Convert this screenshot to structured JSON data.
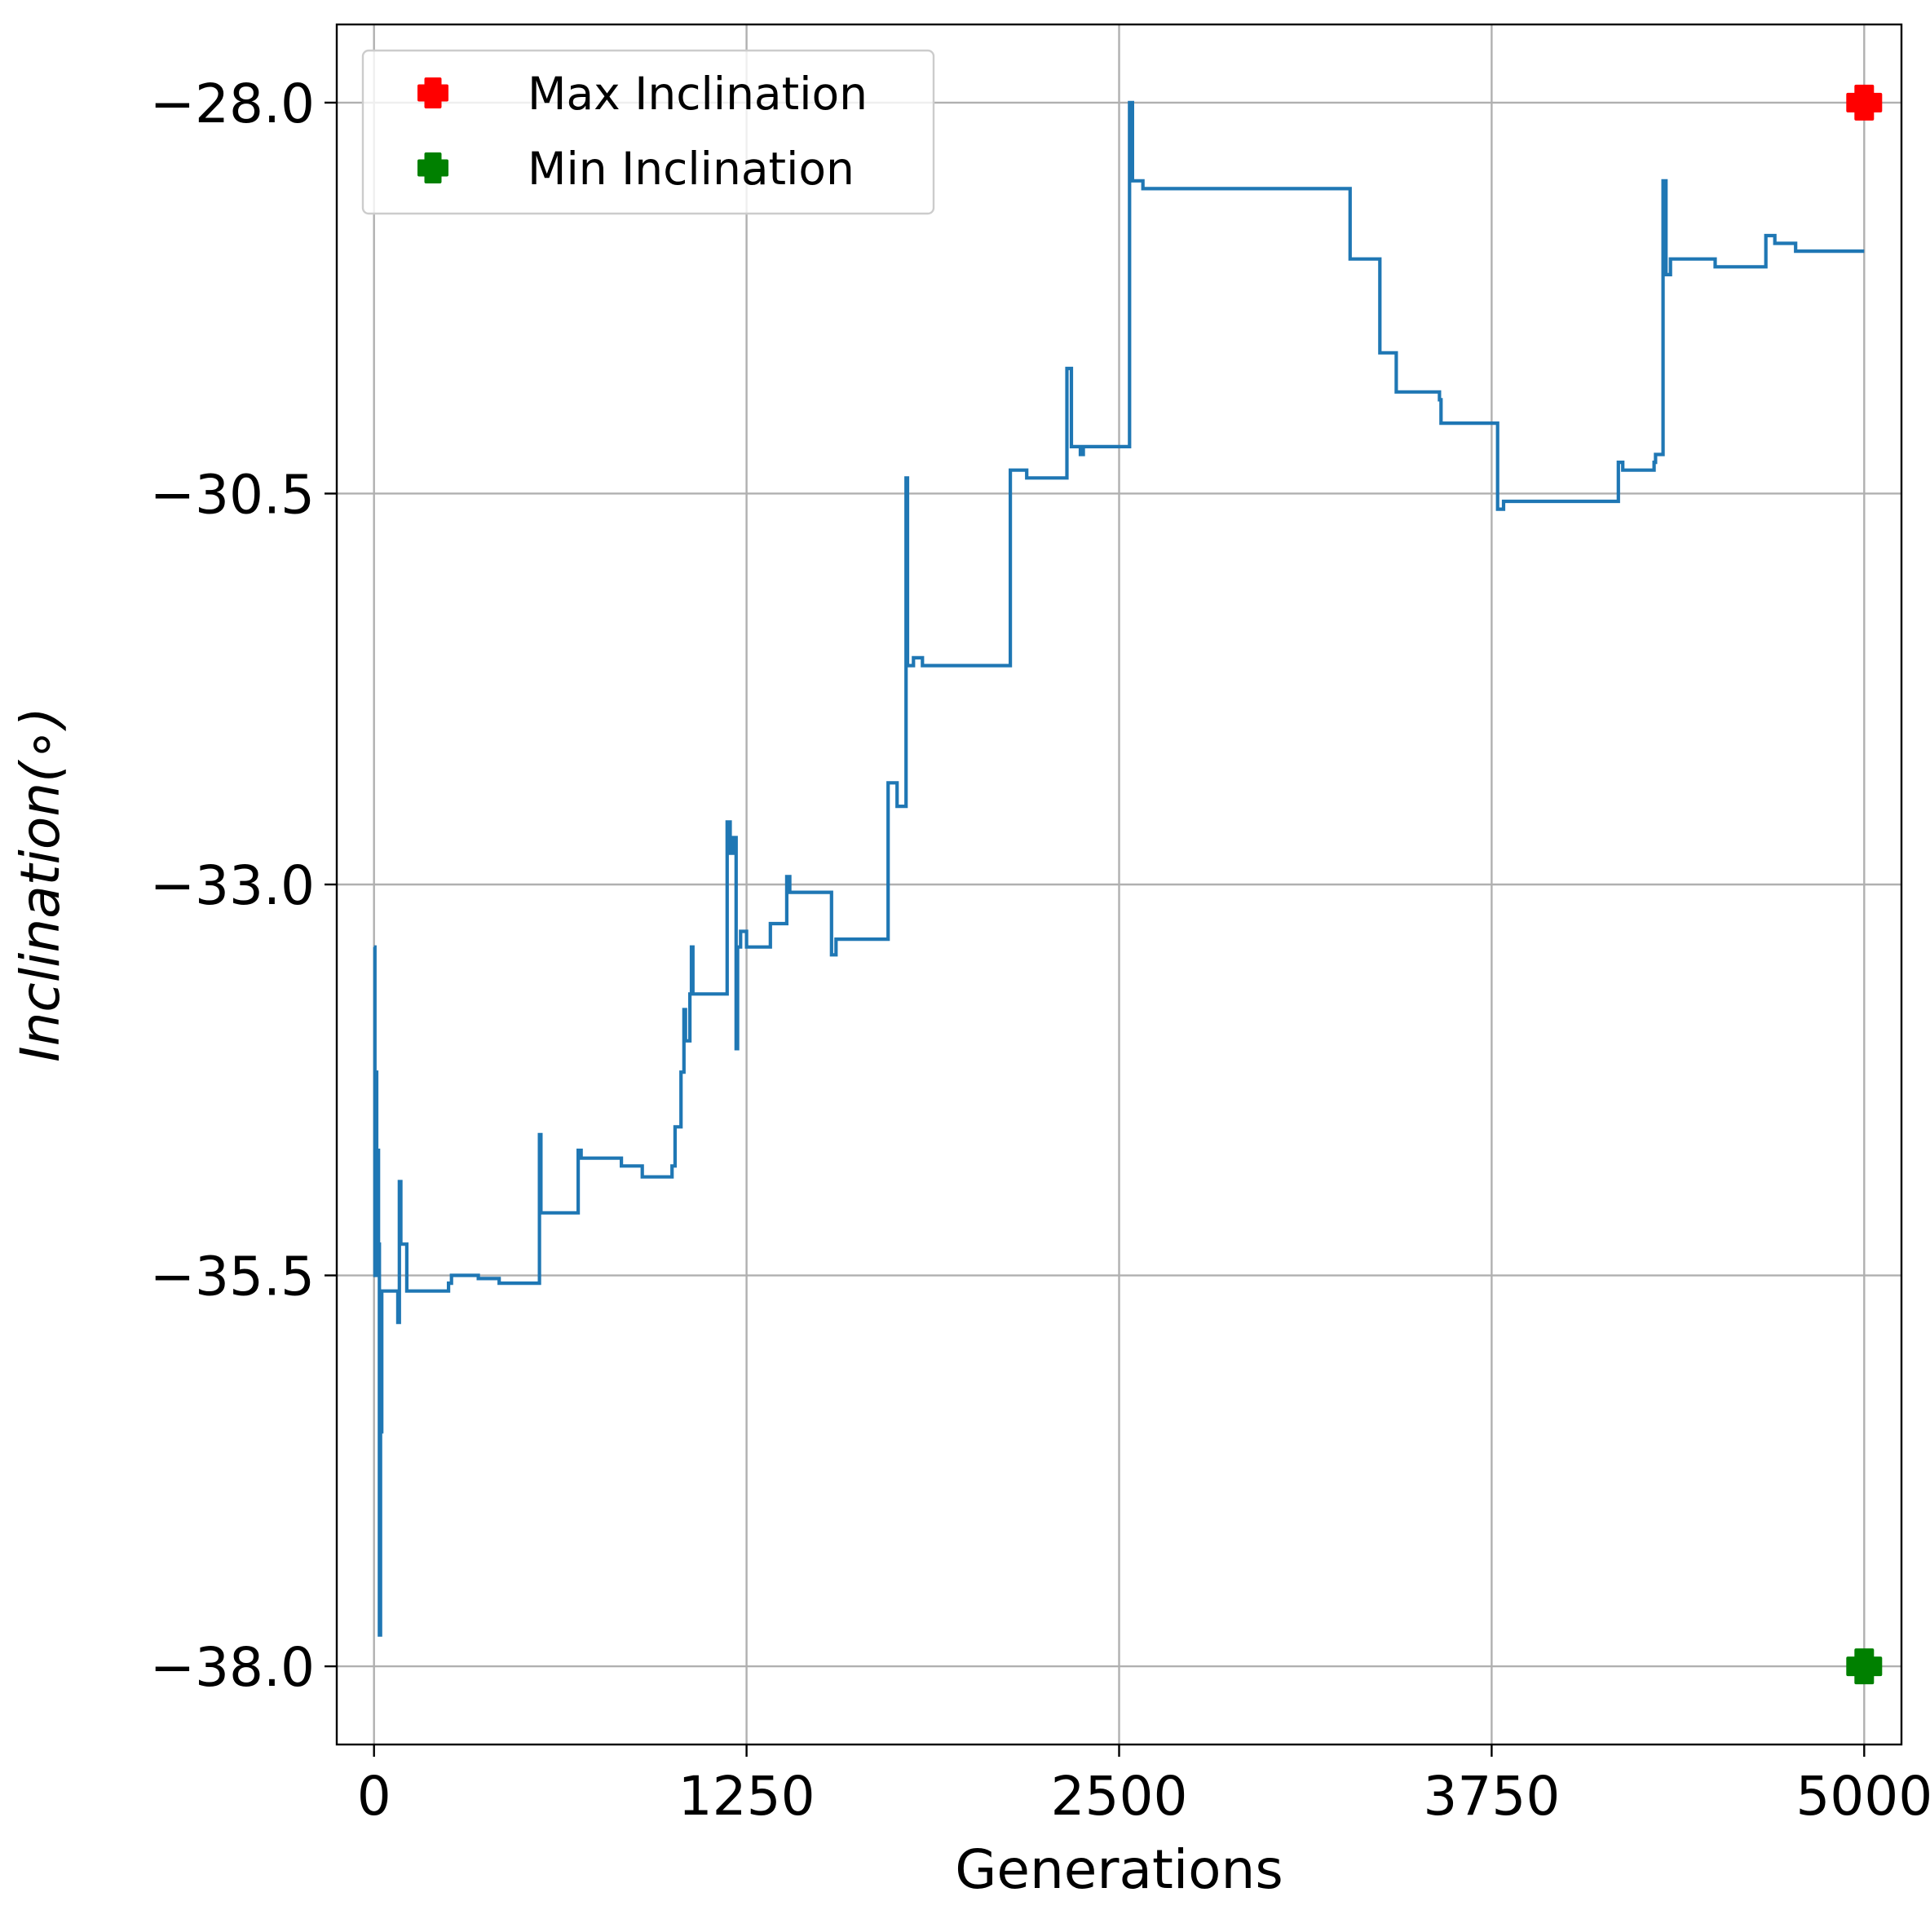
{
  "chart_data": {
    "type": "line",
    "title": "",
    "xlabel": "Generations",
    "ylabel": "Inclination(∘)",
    "xlim": [
      -125,
      5125
    ],
    "ylim": [
      -38.5,
      -27.5
    ],
    "xticks": [
      0,
      1250,
      2500,
      3750,
      5000
    ],
    "xtick_labels": [
      "0",
      "1250",
      "2500",
      "3750",
      "5000"
    ],
    "yticks": [
      -28.0,
      -30.5,
      -33.0,
      -35.5,
      -38.0
    ],
    "ytick_labels": [
      "−28.0",
      "−30.5",
      "−33.0",
      "−35.5",
      "−38.0"
    ],
    "grid": true,
    "legend_position": "top-left",
    "series": [
      {
        "name": "",
        "color": "#1f77b4",
        "style": "step",
        "points": [
          [
            0,
            -33.4
          ],
          [
            3,
            -35.5
          ],
          [
            6,
            -34.2
          ],
          [
            9,
            -35.5
          ],
          [
            12,
            -34.7
          ],
          [
            15,
            -35.3
          ],
          [
            18,
            -37.8
          ],
          [
            22,
            -36.5
          ],
          [
            26,
            -35.6
          ],
          [
            35,
            -35.6
          ],
          [
            45,
            -35.6
          ],
          [
            80,
            -35.8
          ],
          [
            85,
            -34.9
          ],
          [
            90,
            -35.3
          ],
          [
            95,
            -35.3
          ],
          [
            110,
            -35.6
          ],
          [
            150,
            -35.6
          ],
          [
            200,
            -35.6
          ],
          [
            250,
            -35.55
          ],
          [
            260,
            -35.5
          ],
          [
            300,
            -35.5
          ],
          [
            350,
            -35.52
          ],
          [
            420,
            -35.55
          ],
          [
            550,
            -35.55
          ],
          [
            555,
            -34.6
          ],
          [
            560,
            -35.1
          ],
          [
            610,
            -35.1
          ],
          [
            680,
            -35.1
          ],
          [
            685,
            -34.7
          ],
          [
            695,
            -34.75
          ],
          [
            800,
            -34.75
          ],
          [
            830,
            -34.8
          ],
          [
            900,
            -34.87
          ],
          [
            970,
            -34.87
          ],
          [
            1000,
            -34.8
          ],
          [
            1010,
            -34.55
          ],
          [
            1030,
            -34.2
          ],
          [
            1040,
            -33.8
          ],
          [
            1045,
            -34.0
          ],
          [
            1060,
            -33.7
          ],
          [
            1065,
            -33.4
          ],
          [
            1070,
            -33.7
          ],
          [
            1180,
            -33.7
          ],
          [
            1185,
            -32.6
          ],
          [
            1195,
            -32.8
          ],
          [
            1205,
            -32.7
          ],
          [
            1215,
            -34.05
          ],
          [
            1220,
            -33.4
          ],
          [
            1230,
            -33.3
          ],
          [
            1250,
            -33.4
          ],
          [
            1320,
            -33.4
          ],
          [
            1330,
            -33.25
          ],
          [
            1380,
            -33.25
          ],
          [
            1385,
            -32.95
          ],
          [
            1395,
            -33.05
          ],
          [
            1530,
            -33.05
          ],
          [
            1535,
            -33.45
          ],
          [
            1550,
            -33.35
          ],
          [
            1620,
            -33.35
          ],
          [
            1720,
            -33.35
          ],
          [
            1725,
            -32.35
          ],
          [
            1755,
            -32.5
          ],
          [
            1780,
            -32.5
          ],
          [
            1785,
            -30.4
          ],
          [
            1790,
            -31.6
          ],
          [
            1810,
            -31.55
          ],
          [
            1830,
            -31.55
          ],
          [
            1840,
            -31.6
          ],
          [
            2130,
            -31.6
          ],
          [
            2135,
            -30.35
          ],
          [
            2180,
            -30.35
          ],
          [
            2190,
            -30.4
          ],
          [
            2260,
            -30.4
          ],
          [
            2320,
            -30.4
          ],
          [
            2325,
            -29.7
          ],
          [
            2340,
            -30.2
          ],
          [
            2360,
            -30.2
          ],
          [
            2370,
            -30.25
          ],
          [
            2380,
            -30.2
          ],
          [
            2400,
            -30.2
          ],
          [
            2530,
            -30.2
          ],
          [
            2535,
            -28.0
          ],
          [
            2545,
            -28.5
          ],
          [
            2560,
            -28.5
          ],
          [
            2580,
            -28.55
          ],
          [
            2600,
            -28.55
          ],
          [
            2800,
            -28.55
          ],
          [
            3080,
            -28.55
          ],
          [
            3270,
            -28.55
          ],
          [
            3275,
            -29.0
          ],
          [
            3370,
            -29.0
          ],
          [
            3375,
            -29.6
          ],
          [
            3420,
            -29.6
          ],
          [
            3430,
            -29.85
          ],
          [
            3450,
            -29.85
          ],
          [
            3560,
            -29.85
          ],
          [
            3575,
            -29.9
          ],
          [
            3580,
            -30.05
          ],
          [
            3590,
            -30.05
          ],
          [
            3730,
            -30.05
          ],
          [
            3760,
            -30.05
          ],
          [
            3770,
            -30.6
          ],
          [
            3790,
            -30.55
          ],
          [
            3850,
            -30.55
          ],
          [
            4010,
            -30.55
          ],
          [
            4100,
            -30.55
          ],
          [
            4170,
            -30.55
          ],
          [
            4175,
            -30.3
          ],
          [
            4190,
            -30.35
          ],
          [
            4260,
            -30.35
          ],
          [
            4295,
            -30.3
          ],
          [
            4300,
            -30.25
          ],
          [
            4320,
            -30.25
          ],
          [
            4325,
            -28.5
          ],
          [
            4335,
            -29.1
          ],
          [
            4350,
            -29.0
          ],
          [
            4360,
            -29.0
          ],
          [
            4500,
            -29.05
          ],
          [
            4660,
            -29.05
          ],
          [
            4670,
            -28.85
          ],
          [
            4700,
            -28.9
          ],
          [
            4760,
            -28.9
          ],
          [
            4770,
            -28.95
          ],
          [
            5000,
            -28.95
          ]
        ]
      }
    ],
    "markers": [
      {
        "name": "Max Inclination",
        "x": 5000,
        "y": -28.0,
        "color": "#ff0000"
      },
      {
        "name": "Min Inclination",
        "x": 5000,
        "y": -38.0,
        "color": "#008000"
      }
    ]
  }
}
